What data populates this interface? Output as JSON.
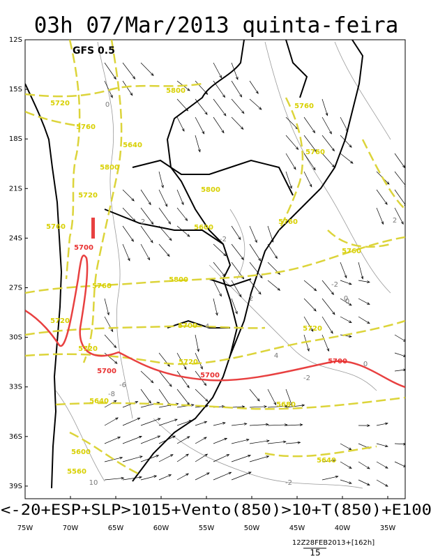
{
  "title": "03h 07/Mar/2013 quinta-feira",
  "model": "GFS 0.5",
  "lat_labels": [
    "12S",
    "15S",
    "18S",
    "21S",
    "24S",
    "27S",
    "30S",
    "33S",
    "36S",
    "39S"
  ],
  "lon_labels": [
    "75W",
    "70W",
    "65W",
    "60W",
    "55W",
    "50W",
    "45W",
    "40W",
    "35W"
  ],
  "caption": "<-20+ESP+SLP>1015+Vento(850)>10+T(850)+E100",
  "footer": {
    "run": "12Z28FEB2013+[162h]",
    "vector_scale": "15"
  },
  "contour_labels": {
    "thickness": [
      "5800",
      "5720",
      "5760",
      "5760",
      "5640",
      "5800",
      "5760",
      "5720",
      "5800",
      "5760",
      "5600",
      "5760",
      "5760",
      "5800",
      "5760",
      "5720",
      "5700",
      "5720",
      "5720",
      "5720",
      "5640",
      "5680",
      "5600",
      "5640",
      "5560"
    ],
    "reference": [
      "5700",
      "5700",
      "5700",
      "5700"
    ],
    "temperature": [
      "0",
      "2",
      "-2",
      "-2",
      "0",
      "2",
      "4",
      "4",
      "-2",
      "0",
      "-8",
      "-6",
      "10",
      "-2",
      "0",
      "2"
    ]
  }
}
